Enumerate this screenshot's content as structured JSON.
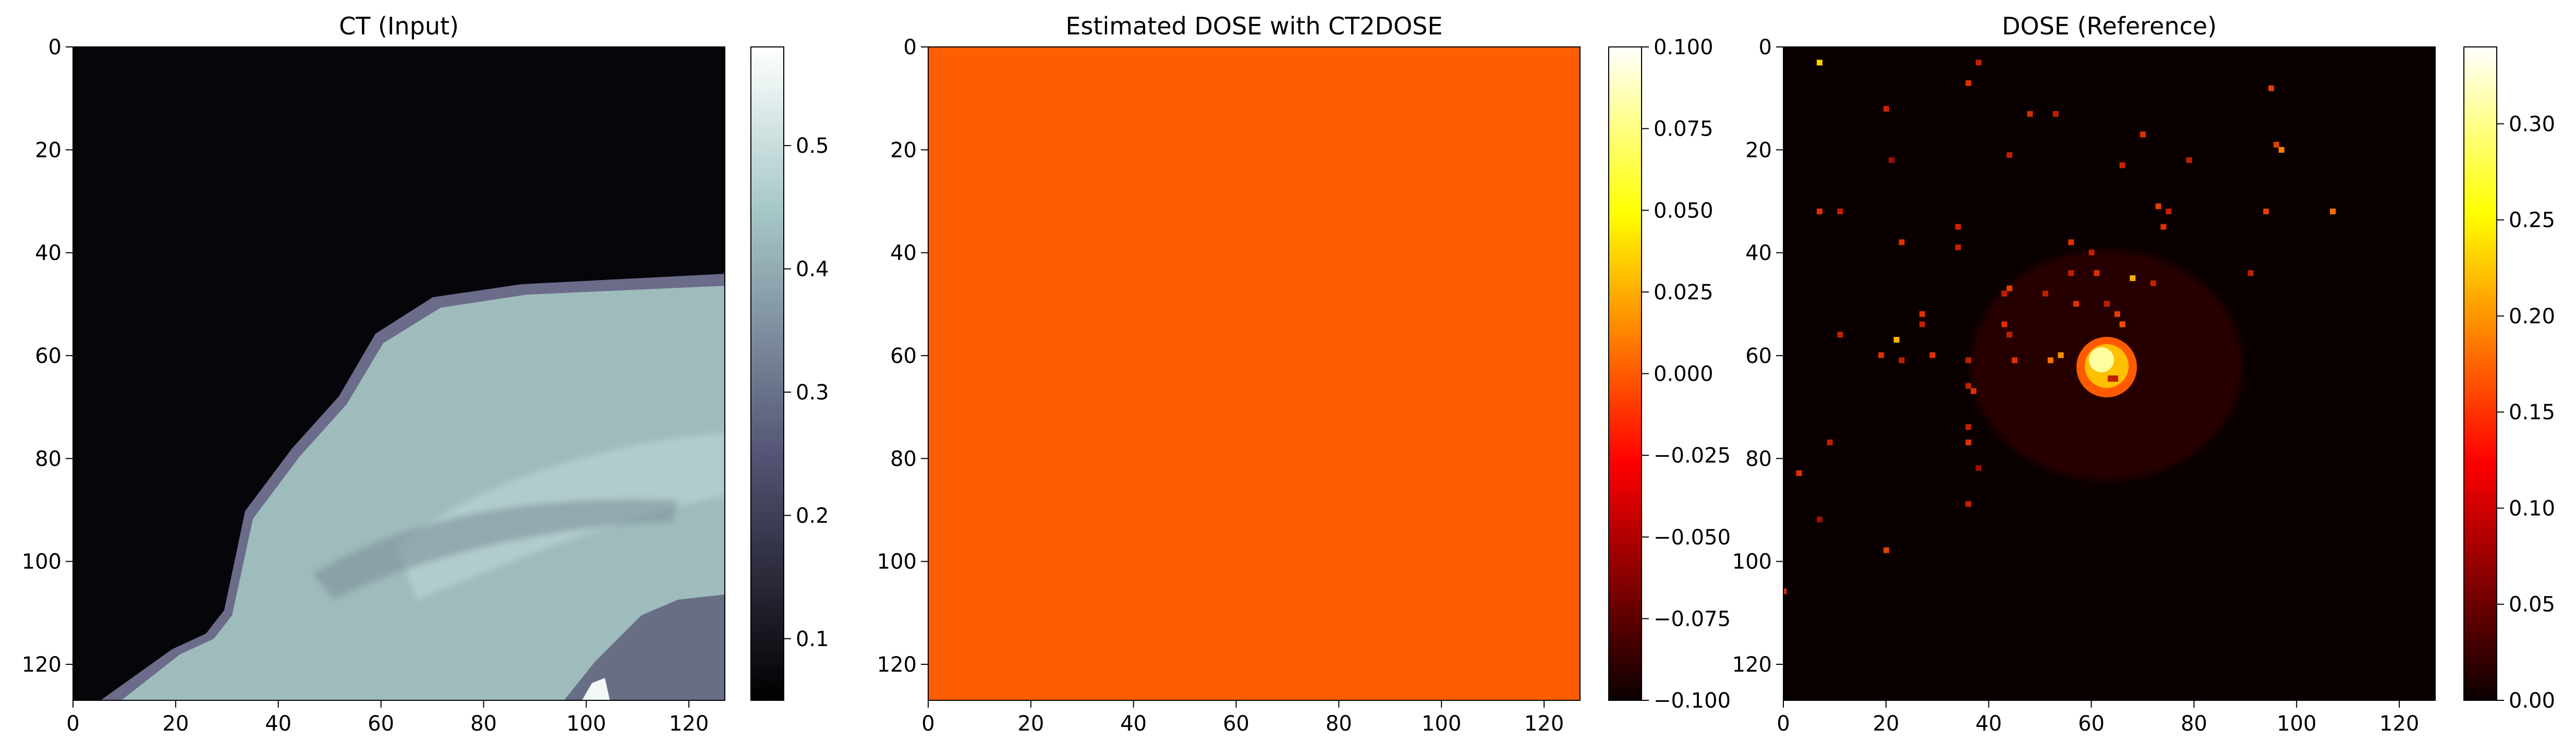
{
  "chart_data": [
    {
      "type": "heatmap",
      "title": "CT (Input)",
      "colormap": "bone",
      "xlim": [
        0,
        127
      ],
      "ylim": [
        127,
        0
      ],
      "x_ticks": [
        "0",
        "20",
        "40",
        "60",
        "80",
        "100",
        "120"
      ],
      "y_ticks": [
        "0",
        "20",
        "40",
        "60",
        "80",
        "100",
        "120"
      ],
      "colorbar": {
        "range": [
          0.05,
          0.58
        ],
        "ticks": [
          "0.1",
          "0.2",
          "0.3",
          "0.4",
          "0.5"
        ]
      }
    },
    {
      "type": "heatmap",
      "title": "Estimated DOSE with CT2DOSE",
      "colormap": "hot",
      "uniform_value": 0.0,
      "fill_color": "#ff5e00",
      "xlim": [
        0,
        127
      ],
      "ylim": [
        127,
        0
      ],
      "x_ticks": [
        "0",
        "20",
        "40",
        "60",
        "80",
        "100",
        "120"
      ],
      "y_ticks": [
        "0",
        "20",
        "40",
        "60",
        "80",
        "100",
        "120"
      ],
      "colorbar": {
        "range": [
          -0.1,
          0.1
        ],
        "ticks": [
          "0.100",
          "0.075",
          "0.050",
          "0.025",
          "0.000",
          "−0.025",
          "−0.050",
          "−0.075",
          "−0.100"
        ]
      }
    },
    {
      "type": "heatmap",
      "title": "DOSE (Reference)",
      "colormap": "hot",
      "hotspot": {
        "x": 62,
        "y": 63,
        "peak": 0.34
      },
      "xlim": [
        0,
        127
      ],
      "ylim": [
        127,
        0
      ],
      "x_ticks": [
        "0",
        "20",
        "40",
        "60",
        "80",
        "100",
        "120"
      ],
      "y_ticks": [
        "0",
        "20",
        "40",
        "60",
        "80",
        "100",
        "120"
      ],
      "colorbar": {
        "range": [
          0.0,
          0.34
        ],
        "ticks": [
          "0.00",
          "0.05",
          "0.10",
          "0.15",
          "0.20",
          "0.25",
          "0.30"
        ]
      }
    }
  ]
}
